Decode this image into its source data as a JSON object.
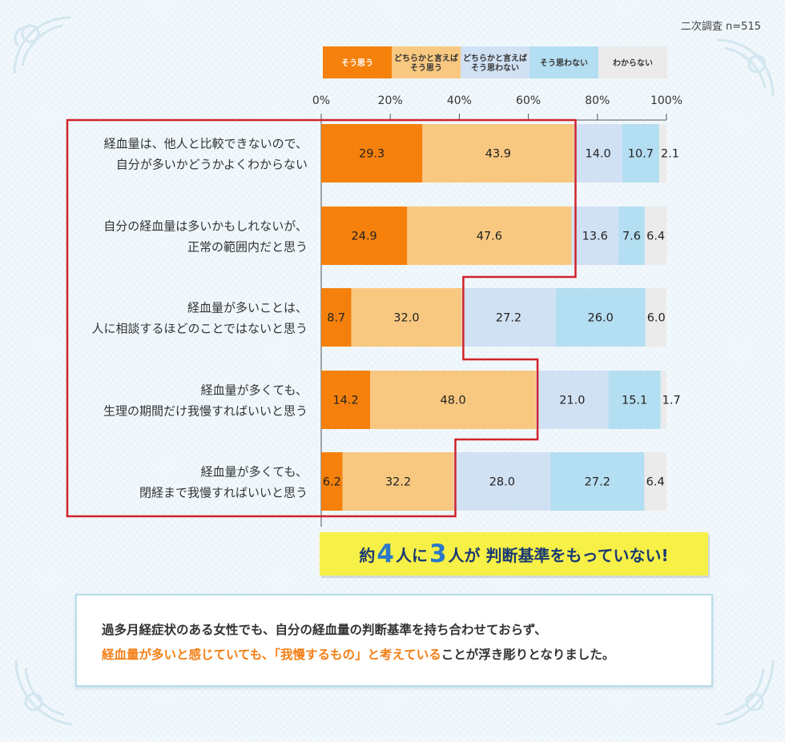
{
  "sample_note": "二次調査 n=515",
  "colors": {
    "soushou": "#f5810c",
    "dochiraka_sou": "#f8c880",
    "dochiraka_not": "#d1e1f4",
    "not": "#b4def1",
    "unknown": "#ebebeb",
    "highlight_frame": "#d1232a"
  },
  "chart_data": {
    "type": "bar",
    "orientation": "horizontal",
    "stacked": true,
    "xlim": [
      0,
      100
    ],
    "x_ticks": [
      "0%",
      "20%",
      "40%",
      "60%",
      "80%",
      "100%"
    ],
    "legend": [
      "そう思う",
      "どちらかと言えば\nそう思う",
      "どちらかと言えば\nそう思わない",
      "そう思わない",
      "わからない"
    ],
    "categories": [
      [
        "経血量は、他人と比較できないので、",
        "自分が多いかどうかよくわからない"
      ],
      [
        "自分の経血量は多いかもしれないが、",
        "正常の範囲内だと思う"
      ],
      [
        "経血量が多いことは、",
        "人に相談するほどのことではないと思う"
      ],
      [
        "経血量が多くても、",
        "生理の期間だけ我慢すればいいと思う"
      ],
      [
        "経血量が多くても、",
        "閉経まで我慢すればいいと思う"
      ]
    ],
    "series": [
      {
        "name": "そう思う",
        "values": [
          29.3,
          24.9,
          8.7,
          14.2,
          6.2
        ]
      },
      {
        "name": "どちらかと言えばそう思う",
        "values": [
          43.9,
          47.6,
          32.0,
          48.0,
          32.2
        ]
      },
      {
        "name": "どちらかと言えばそう思わない",
        "values": [
          14.0,
          13.6,
          27.2,
          21.0,
          28.0
        ]
      },
      {
        "name": "そう思わない",
        "values": [
          10.7,
          7.6,
          26.0,
          15.1,
          27.2
        ]
      },
      {
        "name": "わからない",
        "values": [
          2.1,
          6.4,
          6.0,
          1.7,
          6.4
        ]
      }
    ],
    "value_labels": [
      [
        "29.3",
        "43.9",
        "14.0",
        "10.7",
        "2.1"
      ],
      [
        "24.9",
        "47.6",
        "13.6",
        "7.6",
        "6.4"
      ],
      [
        "8.7",
        "32.0",
        "27.2",
        "26.0",
        "6.0"
      ],
      [
        "14.2",
        "48.0",
        "21.0",
        "15.1",
        "1.7"
      ],
      [
        "6.2",
        "32.2",
        "28.0",
        "27.2",
        "6.4"
      ]
    ]
  },
  "highlight": {
    "prefix": "約",
    "num1": "4",
    "mid": "人に",
    "num2": "3",
    "suffix": "人が 判断基準をもっていない!"
  },
  "summary": {
    "line1": "過多月経症状のある女性でも、自分の経血量の判断基準を持ち合わせておらず、",
    "line2_orange": "経血量が多いと感じていても、「我慢するもの」と考えている",
    "line2_rest": "ことが浮き彫りとなりました。"
  }
}
